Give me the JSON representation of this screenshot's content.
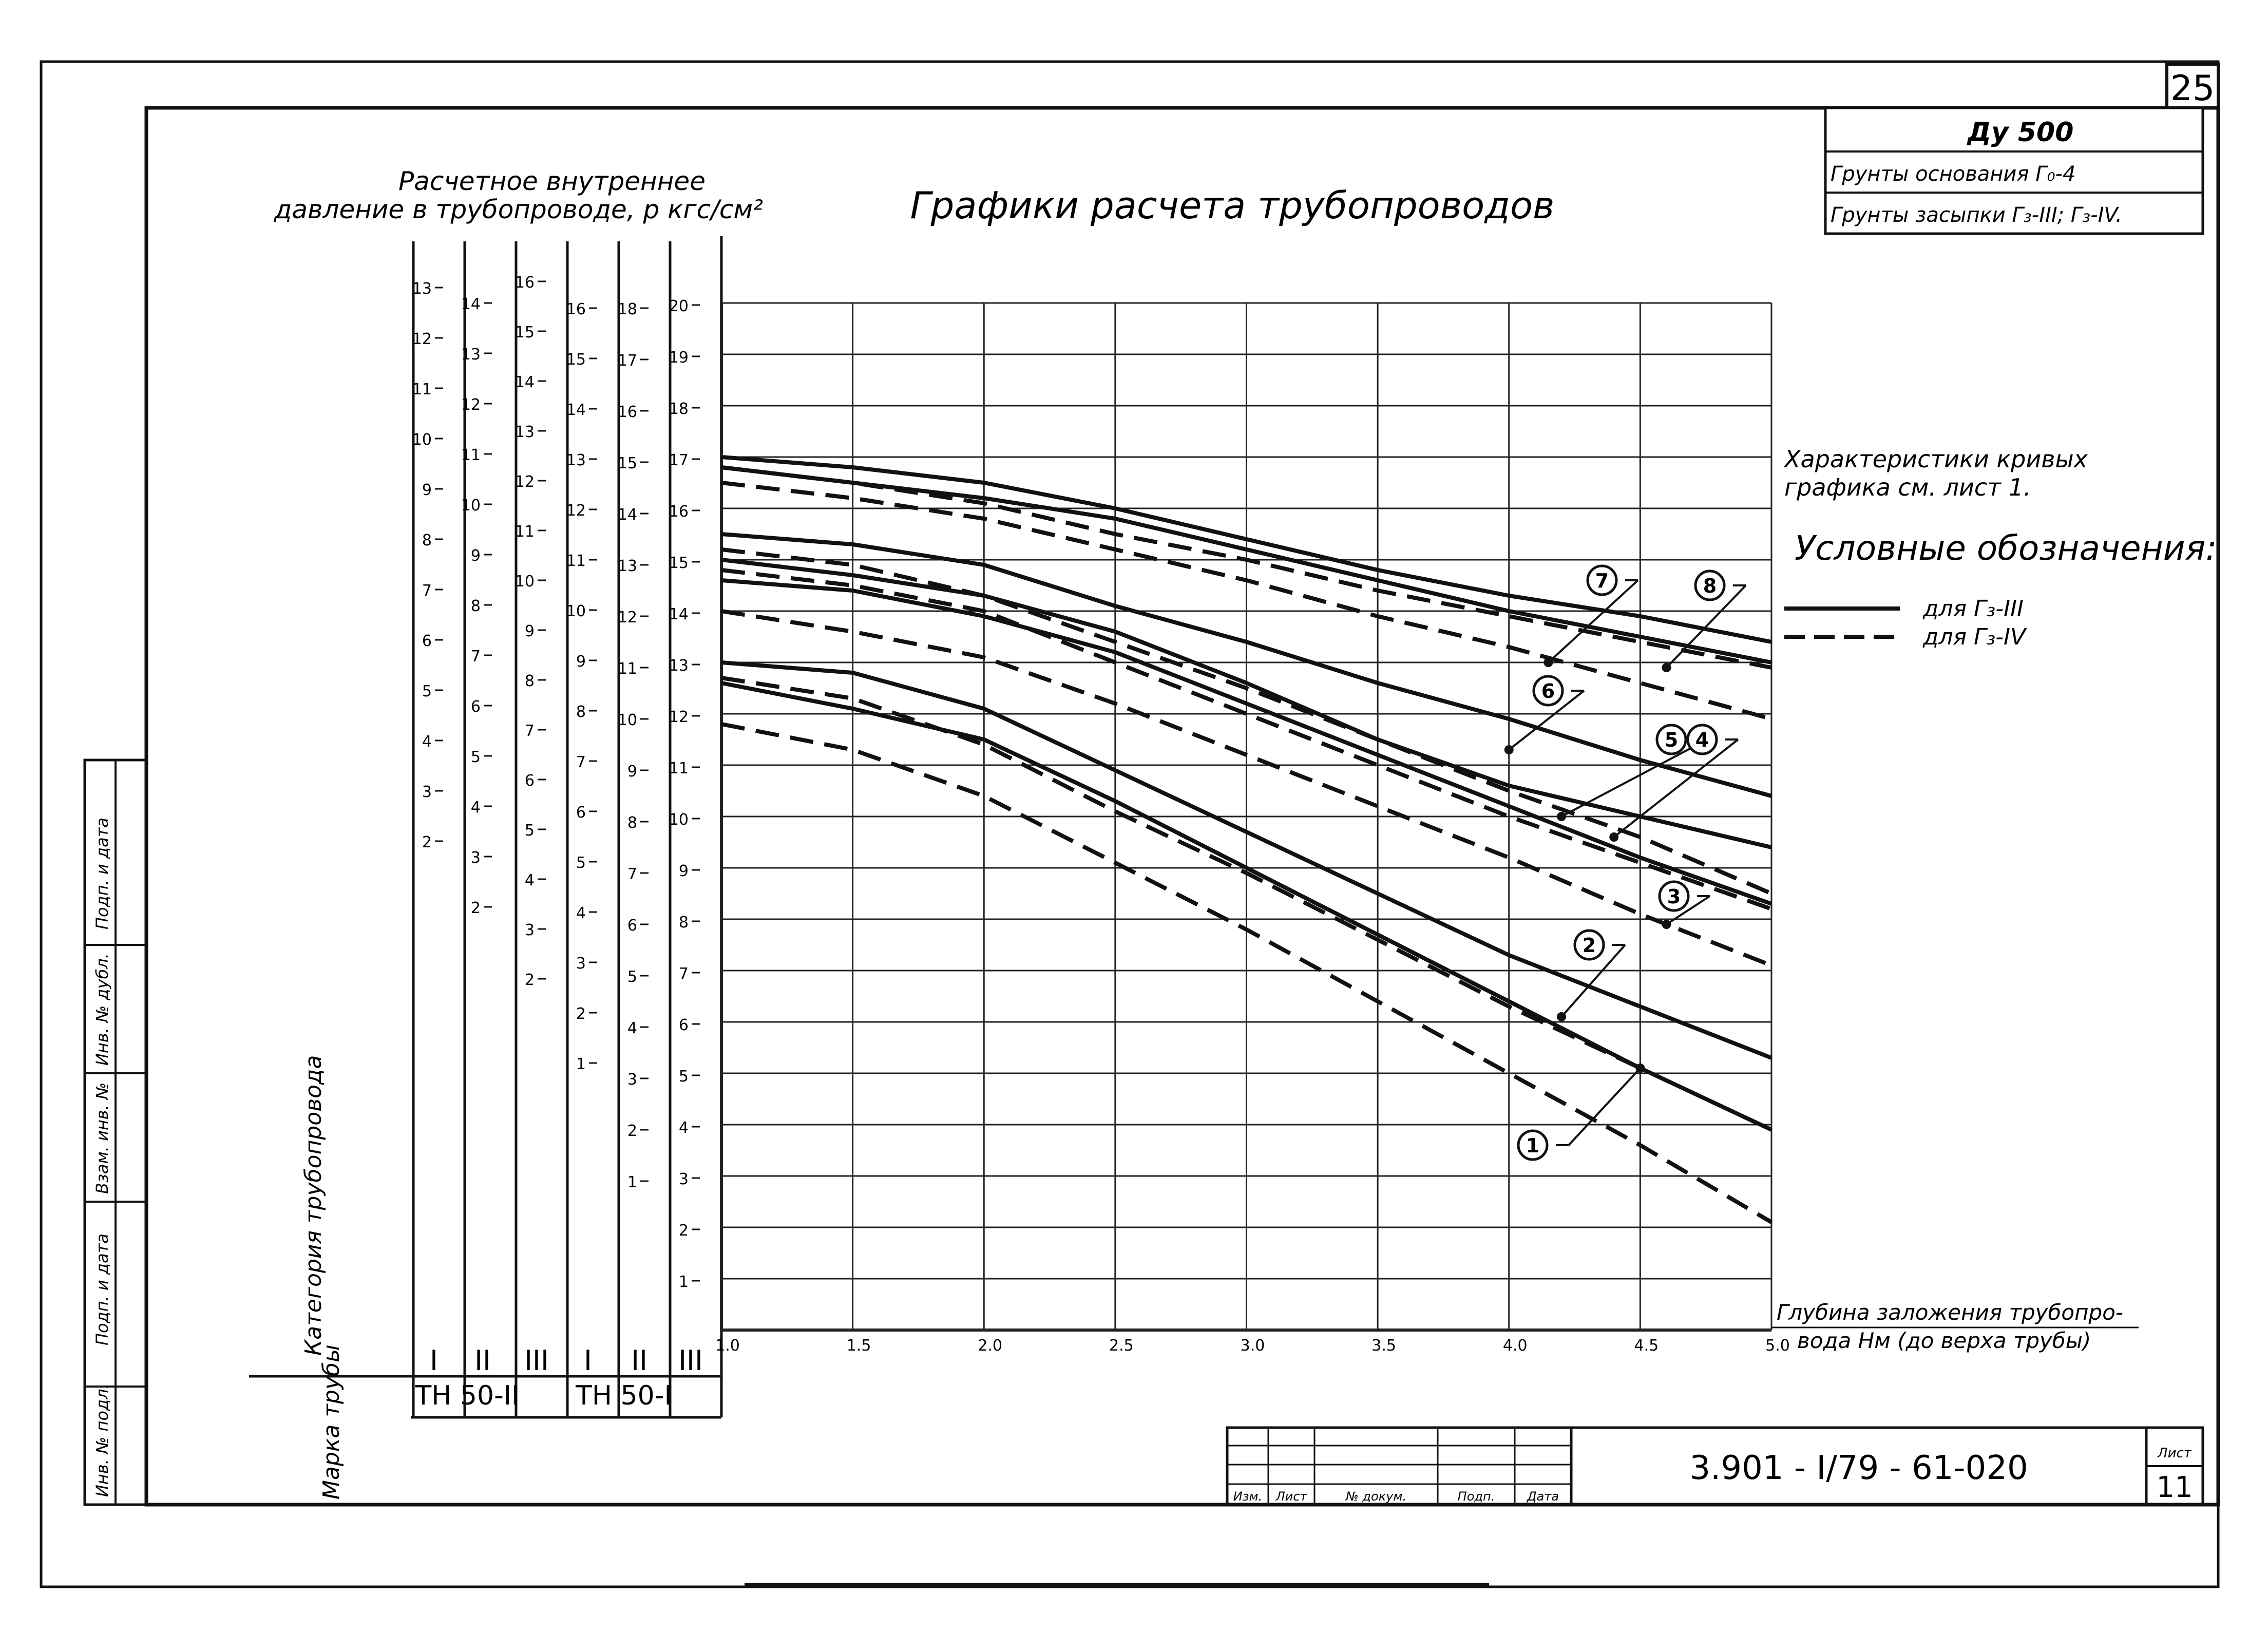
{
  "sheet": {
    "page_number": "25",
    "document_code": "3.901 - I/79 - 61-020",
    "sheet_label": "Лист",
    "sheet_number": "11",
    "stamp_headers": [
      "Изм.",
      "Лист",
      "№ докум.",
      "Подп.",
      "Дата"
    ],
    "side_labels": [
      "Подп. и дата",
      "Инв. № дубл.",
      "Взам. инв. №",
      "Подп. и дата",
      "Инв. № подл."
    ]
  },
  "info_box": {
    "du": "Ду 500",
    "base_soil": "Грунты основания Г₀-4",
    "fill_soil": "Грунты засыпки Г₃-III; Г₃-IV."
  },
  "pressure_header": {
    "line1": "Расчетное внутреннее",
    "line2": "давление в трубопроводе, р кгс/см²"
  },
  "notes": {
    "characteristics_line1": "Характеристики кривых",
    "characteristics_line2": "графика см. лист 1.",
    "legend_title": "Условные обозначения:",
    "legend_solid": "для Г₃-III",
    "legend_dashed": "для Г₃-IV"
  },
  "row_labels": {
    "category": "Категория трубопровода",
    "mark": "Марка трубы"
  },
  "pipe_marks": [
    "ТН 50-II",
    "ТН 50-I"
  ],
  "pressure_scales": [
    {
      "category": "I",
      "ticks": [
        "13",
        "12",
        "11",
        "10",
        "9",
        "8",
        "7",
        "6",
        "5",
        "4",
        "3",
        "2"
      ]
    },
    {
      "category": "II",
      "ticks": [
        "14",
        "13",
        "12",
        "11",
        "10",
        "9",
        "8",
        "7",
        "6",
        "5",
        "4",
        "3",
        "2"
      ]
    },
    {
      "category": "III",
      "ticks": [
        "16",
        "15",
        "14",
        "13",
        "12",
        "11",
        "10",
        "9",
        "8",
        "7",
        "6",
        "5",
        "4",
        "3",
        "2"
      ]
    },
    {
      "category": "I",
      "ticks": [
        "16",
        "15",
        "14",
        "13",
        "12",
        "11",
        "10",
        "9",
        "8",
        "7",
        "6",
        "5",
        "4",
        "3",
        "2",
        "1"
      ]
    },
    {
      "category": "II",
      "ticks": [
        "18",
        "17",
        "16",
        "15",
        "14",
        "13",
        "12",
        "11",
        "10",
        "9",
        "8",
        "7",
        "6",
        "5",
        "4",
        "3",
        "2",
        "1"
      ]
    },
    {
      "category": "III",
      "ticks": [
        "20",
        "19",
        "18",
        "17",
        "16",
        "15",
        "14",
        "13",
        "12",
        "11",
        "10",
        "9",
        "8",
        "7",
        "6",
        "5",
        "4",
        "3",
        "2",
        "1"
      ]
    }
  ],
  "chart_data": {
    "type": "line",
    "title": "Графики расчета трубопроводов",
    "xlabel_line1": "Глубина заложения трубопро-",
    "xlabel_line2": "вода Нм (до верха трубы)",
    "xlim": [
      1.0,
      5.0
    ],
    "ylim": [
      0,
      20
    ],
    "grid": true,
    "x_tick_labels": [
      "1.0",
      "1.5",
      "2.0",
      "2.5",
      "3.0",
      "3.5",
      "4.0",
      "4.5",
      "5.0"
    ],
    "series": [
      {
        "name": "1",
        "style": "dashed",
        "x": [
          1.0,
          1.5,
          2.0,
          2.5,
          3.0,
          3.5,
          4.0,
          4.5,
          5.0
        ],
        "y": [
          11.8,
          11.3,
          10.4,
          9.1,
          7.8,
          6.4,
          5.0,
          3.6,
          2.1
        ]
      },
      {
        "name": "2",
        "style": "dashed",
        "x": [
          1.0,
          1.5,
          2.0,
          2.5,
          3.0,
          3.5,
          4.0,
          4.5,
          5.0
        ],
        "y": [
          12.7,
          12.3,
          11.4,
          10.1,
          8.9,
          7.6,
          6.3,
          5.1,
          3.9
        ]
      },
      {
        "name": "2",
        "style": "solid",
        "x": [
          1.0,
          1.5,
          2.0,
          2.5,
          3.0,
          3.5,
          4.0,
          4.5,
          5.0
        ],
        "y": [
          13.0,
          12.8,
          12.1,
          10.9,
          9.7,
          8.5,
          7.3,
          6.3,
          5.3
        ]
      },
      {
        "name": "2",
        "style": "solid",
        "x": [
          1.0,
          1.5,
          2.0,
          2.5,
          3.0,
          3.5,
          4.0,
          4.5,
          5.0
        ],
        "y": [
          12.6,
          12.1,
          11.5,
          10.3,
          9.0,
          7.7,
          6.4,
          5.1,
          3.9
        ]
      },
      {
        "name": "3",
        "style": "dashed",
        "x": [
          1.0,
          1.5,
          2.0,
          2.5,
          3.0,
          3.5,
          4.0,
          4.5,
          5.0
        ],
        "y": [
          14.0,
          13.6,
          13.1,
          12.2,
          11.2,
          10.2,
          9.2,
          8.1,
          7.1
        ]
      },
      {
        "name": "4",
        "style": "dashed",
        "x": [
          1.0,
          1.5,
          2.0,
          2.5,
          3.0,
          3.5,
          4.0,
          4.5,
          5.0
        ],
        "y": [
          14.8,
          14.5,
          14.0,
          13.0,
          12.0,
          11.0,
          10.0,
          9.1,
          8.2
        ]
      },
      {
        "name": "5",
        "style": "solid",
        "x": [
          1.0,
          1.5,
          2.0,
          2.5,
          3.0,
          3.5,
          4.0,
          4.5,
          5.0
        ],
        "y": [
          14.6,
          14.4,
          13.9,
          13.2,
          12.2,
          11.2,
          10.2,
          9.2,
          8.3
        ]
      },
      {
        "name": "5",
        "style": "dashed",
        "x": [
          1.0,
          1.5,
          2.0,
          2.5,
          3.0,
          3.5,
          4.0,
          4.5,
          5.0
        ],
        "y": [
          15.2,
          14.9,
          14.3,
          13.4,
          12.5,
          11.5,
          10.5,
          9.6,
          8.5
        ]
      },
      {
        "name": "4",
        "style": "solid",
        "x": [
          1.0,
          1.5,
          2.0,
          2.5,
          3.0,
          3.5,
          4.0,
          4.5,
          5.0
        ],
        "y": [
          15.0,
          14.7,
          14.3,
          13.6,
          12.6,
          11.5,
          10.6,
          10.0,
          9.4
        ]
      },
      {
        "name": "6",
        "style": "solid",
        "x": [
          1.0,
          1.5,
          2.0,
          2.5,
          3.0,
          3.5,
          4.0,
          4.5,
          5.0
        ],
        "y": [
          15.5,
          15.3,
          14.9,
          14.1,
          13.4,
          12.6,
          11.9,
          11.1,
          10.4
        ]
      },
      {
        "name": "7",
        "style": "dashed",
        "x": [
          1.0,
          1.5,
          2.0,
          2.5,
          3.0,
          3.5,
          4.0,
          4.5,
          5.0
        ],
        "y": [
          16.5,
          16.2,
          15.8,
          15.2,
          14.6,
          13.9,
          13.3,
          12.6,
          11.9
        ]
      },
      {
        "name": "8",
        "style": "dashed",
        "x": [
          1.0,
          1.5,
          2.0,
          2.5,
          3.0,
          3.5,
          4.0,
          4.5,
          5.0
        ],
        "y": [
          16.8,
          16.5,
          16.1,
          15.5,
          15.0,
          14.4,
          13.9,
          13.4,
          12.9
        ]
      },
      {
        "name": "7",
        "style": "solid",
        "x": [
          1.0,
          1.5,
          2.0,
          2.5,
          3.0,
          3.5,
          4.0,
          4.5,
          5.0
        ],
        "y": [
          16.8,
          16.5,
          16.2,
          15.8,
          15.2,
          14.6,
          14.0,
          13.5,
          13.0
        ]
      },
      {
        "name": "8",
        "style": "solid",
        "x": [
          1.0,
          1.5,
          2.0,
          2.5,
          3.0,
          3.5,
          4.0,
          4.5,
          5.0
        ],
        "y": [
          17.0,
          16.8,
          16.5,
          16.0,
          15.4,
          14.8,
          14.3,
          13.9,
          13.4
        ]
      }
    ],
    "curve_labels": [
      "1",
      "2",
      "3",
      "4",
      "5",
      "6",
      "7",
      "8"
    ]
  }
}
